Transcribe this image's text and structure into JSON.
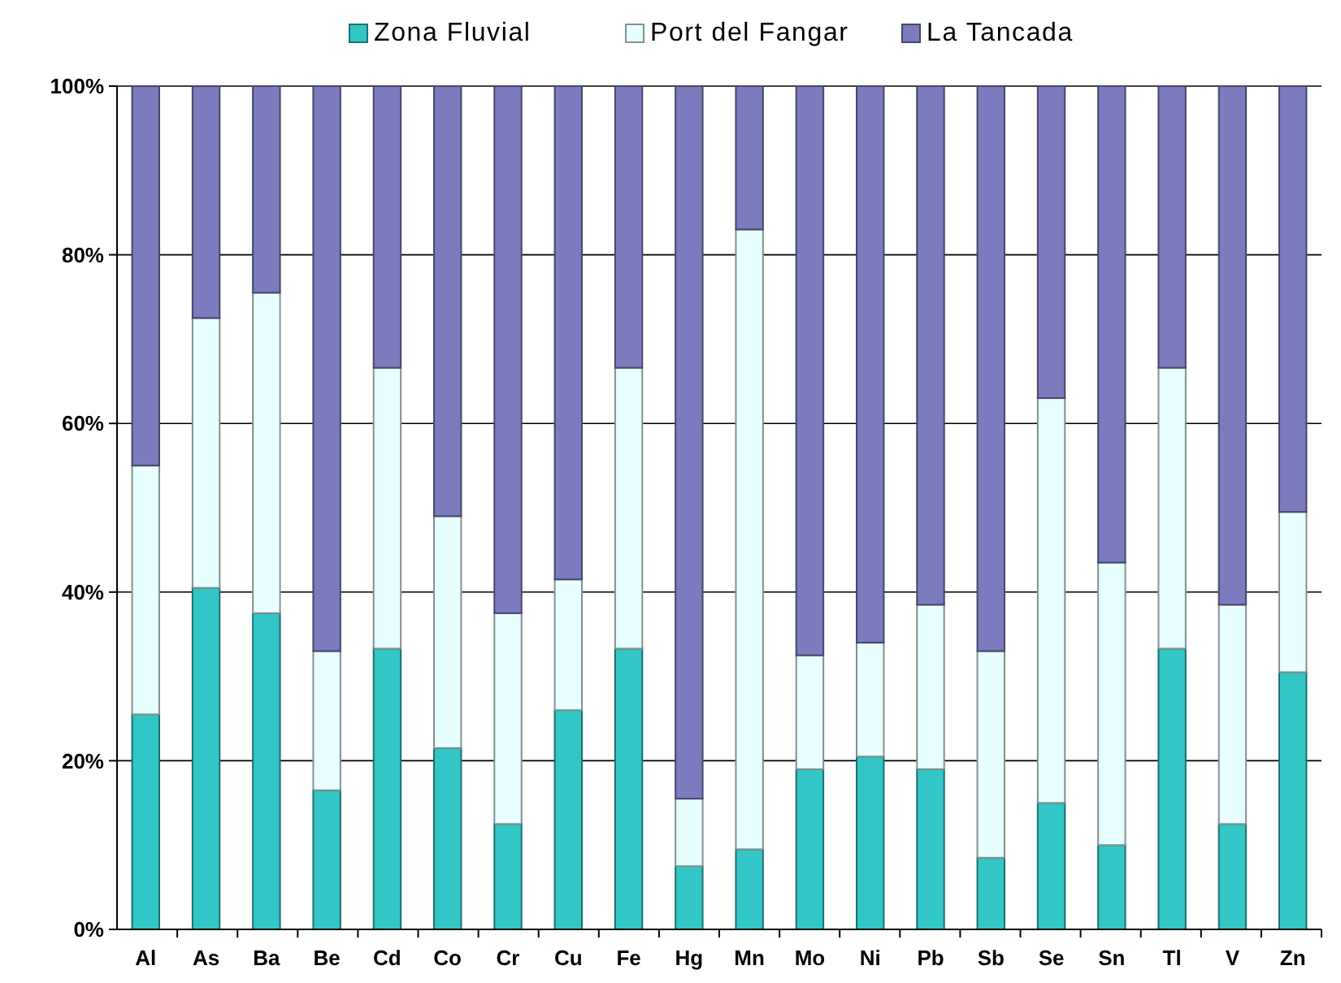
{
  "chart_data": {
    "type": "bar",
    "stacked": true,
    "categories": [
      "Al",
      "As",
      "Ba",
      "Be",
      "Cd",
      "Co",
      "Cr",
      "Cu",
      "Fe",
      "Hg",
      "Mn",
      "Mo",
      "Ni",
      "Pb",
      "Sb",
      "Se",
      "Sn",
      "Tl",
      "V",
      "Zn"
    ],
    "series": [
      {
        "name": "Zona Fluvial",
        "color": "#33c6c6",
        "values": [
          25.5,
          40.5,
          37.5,
          16.5,
          33.3,
          21.5,
          12.5,
          26,
          33.3,
          7.5,
          9.5,
          19,
          20.5,
          19,
          8.5,
          15,
          10,
          33.3,
          12.5,
          30.5
        ]
      },
      {
        "name": "Port del Fangar",
        "color": "#e8ffff",
        "values": [
          29.5,
          32,
          38,
          16.5,
          33.3,
          27.5,
          25,
          15.5,
          33.3,
          8,
          73.5,
          13.5,
          13.5,
          19.5,
          24.5,
          48,
          33.5,
          33.3,
          26,
          19
        ]
      },
      {
        "name": "La Tancada",
        "color": "#7b7bbd",
        "values": [
          45,
          27.5,
          24.5,
          67,
          33.4,
          51,
          62.5,
          58.5,
          33.4,
          84.5,
          17,
          67.5,
          66,
          61.5,
          67,
          37,
          56.5,
          33.4,
          61.5,
          50.5
        ]
      }
    ],
    "ylim": [
      0,
      100
    ],
    "yticks": [
      {
        "value": 0,
        "label": "0%"
      },
      {
        "value": 20,
        "label": "20%"
      },
      {
        "value": 40,
        "label": "40%"
      },
      {
        "value": 60,
        "label": "60%"
      },
      {
        "value": 80,
        "label": "80%"
      },
      {
        "value": 100,
        "label": "100%"
      }
    ],
    "grid": "y",
    "legend": "top"
  }
}
